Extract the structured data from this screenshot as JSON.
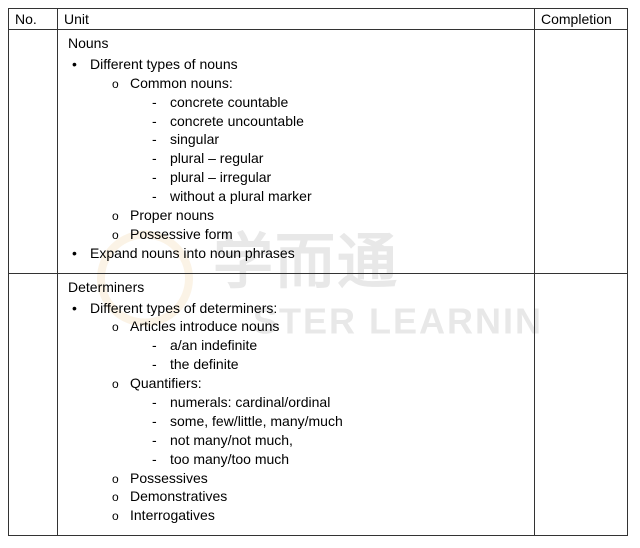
{
  "headers": {
    "no": "No.",
    "unit": "Unit",
    "completion": "Completion"
  },
  "rows": [
    {
      "title": "Nouns",
      "bullets": [
        {
          "text": "Different types of nouns",
          "children": [
            {
              "text": "Common nouns:",
              "children": [
                {
                  "text": "concrete countable"
                },
                {
                  "text": "concrete uncountable"
                },
                {
                  "text": "singular"
                },
                {
                  "text": "plural – regular"
                },
                {
                  "text": "plural – irregular"
                },
                {
                  "text": "without a plural marker"
                }
              ]
            },
            {
              "text": "Proper nouns"
            },
            {
              "text": "Possessive form"
            }
          ]
        },
        {
          "text": "Expand nouns into noun phrases"
        }
      ]
    },
    {
      "title": "Determiners",
      "bullets": [
        {
          "text": "Different types of determiners:",
          "children": [
            {
              "text": "Articles introduce nouns",
              "children": [
                {
                  "text": "a/an indefinite"
                },
                {
                  "text": "the definite"
                }
              ]
            },
            {
              "text": "Quantifiers:",
              "children": [
                {
                  "text": "numerals: cardinal/ordinal"
                },
                {
                  "text": "some, few/little, many/much"
                },
                {
                  "text": "not many/not much,"
                },
                {
                  "text": "too many/too much"
                }
              ]
            },
            {
              "text": "Possessives"
            },
            {
              "text": "Demonstratives"
            },
            {
              "text": "Interrogatives"
            }
          ]
        }
      ]
    }
  ],
  "watermark": {
    "text1": "学而通",
    "text2": "STER LEARNIN"
  }
}
